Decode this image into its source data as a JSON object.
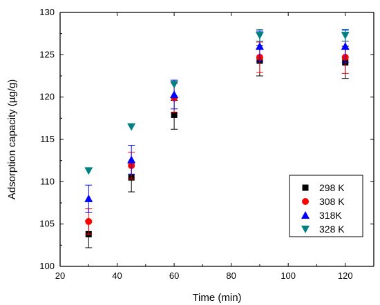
{
  "chart_data": {
    "type": "scatter",
    "title": "",
    "xlabel": "Time (min)",
    "ylabel": "Adsorption capacity (µg/g)",
    "xlim": [
      20,
      130
    ],
    "ylim": [
      100,
      130
    ],
    "xticks": [
      20,
      40,
      60,
      80,
      100,
      120
    ],
    "yticks": [
      100,
      105,
      110,
      115,
      120,
      125,
      130
    ],
    "x": [
      30,
      45,
      60,
      90,
      120
    ],
    "grid": false,
    "legend_position": "lower-right",
    "series": [
      {
        "name": "298 K",
        "marker": "square",
        "color": "#000000",
        "values": [
          103.8,
          110.5,
          117.9,
          124.3,
          124.1
        ],
        "errors": [
          1.6,
          1.7,
          1.7,
          1.8,
          1.9
        ]
      },
      {
        "name": "308 K",
        "marker": "circle",
        "color": "#ff0000",
        "values": [
          105.3,
          111.9,
          119.9,
          124.7,
          124.7
        ],
        "errors": [
          1.5,
          1.6,
          1.7,
          1.8,
          1.9
        ]
      },
      {
        "name": "318K",
        "marker": "triangle-up",
        "color": "#0000ff",
        "values": [
          108.0,
          112.6,
          120.3,
          126.0,
          126.0
        ],
        "errors": [
          1.6,
          1.7,
          1.7,
          1.8,
          1.9
        ]
      },
      {
        "name": "328 K",
        "marker": "triangle-down",
        "color": "#008080",
        "values": [
          111.3,
          116.5,
          121.5,
          127.3,
          127.3
        ],
        "errors": [
          0,
          0,
          0,
          0.7,
          0.7
        ]
      }
    ]
  }
}
